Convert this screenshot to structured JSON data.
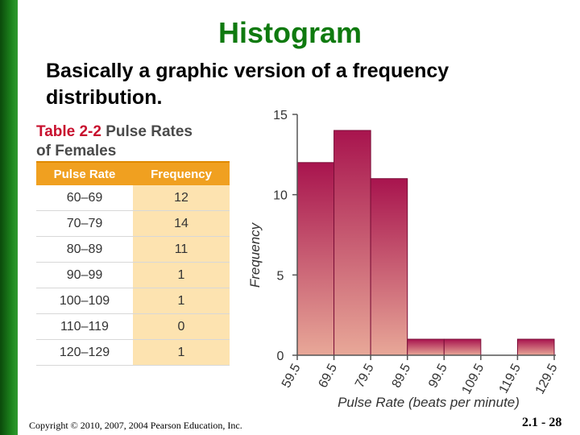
{
  "slide": {
    "title": "Histogram",
    "subtitle_line1": "Basically a graphic version of a frequency",
    "subtitle_line2": "distribution.",
    "copyright": "Copyright © 2010, 2007, 2004 Pearson Education, Inc.",
    "page_number": "2.1 - 28"
  },
  "table": {
    "label_number": "Table 2-2",
    "label_text": "Pulse Rates",
    "label_line2": "of Females",
    "headers": [
      "Pulse Rate",
      "Frequency"
    ],
    "rows": [
      [
        "60–69",
        "12"
      ],
      [
        "70–79",
        "14"
      ],
      [
        "80–89",
        "11"
      ],
      [
        "90–99",
        "1"
      ],
      [
        "100–109",
        "1"
      ],
      [
        "110–119",
        "0"
      ],
      [
        "120–129",
        "1"
      ]
    ]
  },
  "chart_data": {
    "type": "bar",
    "title": "",
    "xlabel": "Pulse Rate (beats per minute)",
    "ylabel": "Frequency",
    "ylim": [
      0,
      15
    ],
    "yticks": [
      0,
      5,
      10,
      15
    ],
    "bin_edges": [
      "59.5",
      "69.5",
      "79.5",
      "89.5",
      "99.5",
      "109.5",
      "119.5",
      "129.5"
    ],
    "values": [
      12,
      14,
      11,
      1,
      1,
      0,
      1
    ],
    "bar_color_top": "#a8144e",
    "bar_color_bottom": "#e8a898",
    "grid": false,
    "legend": "none"
  }
}
